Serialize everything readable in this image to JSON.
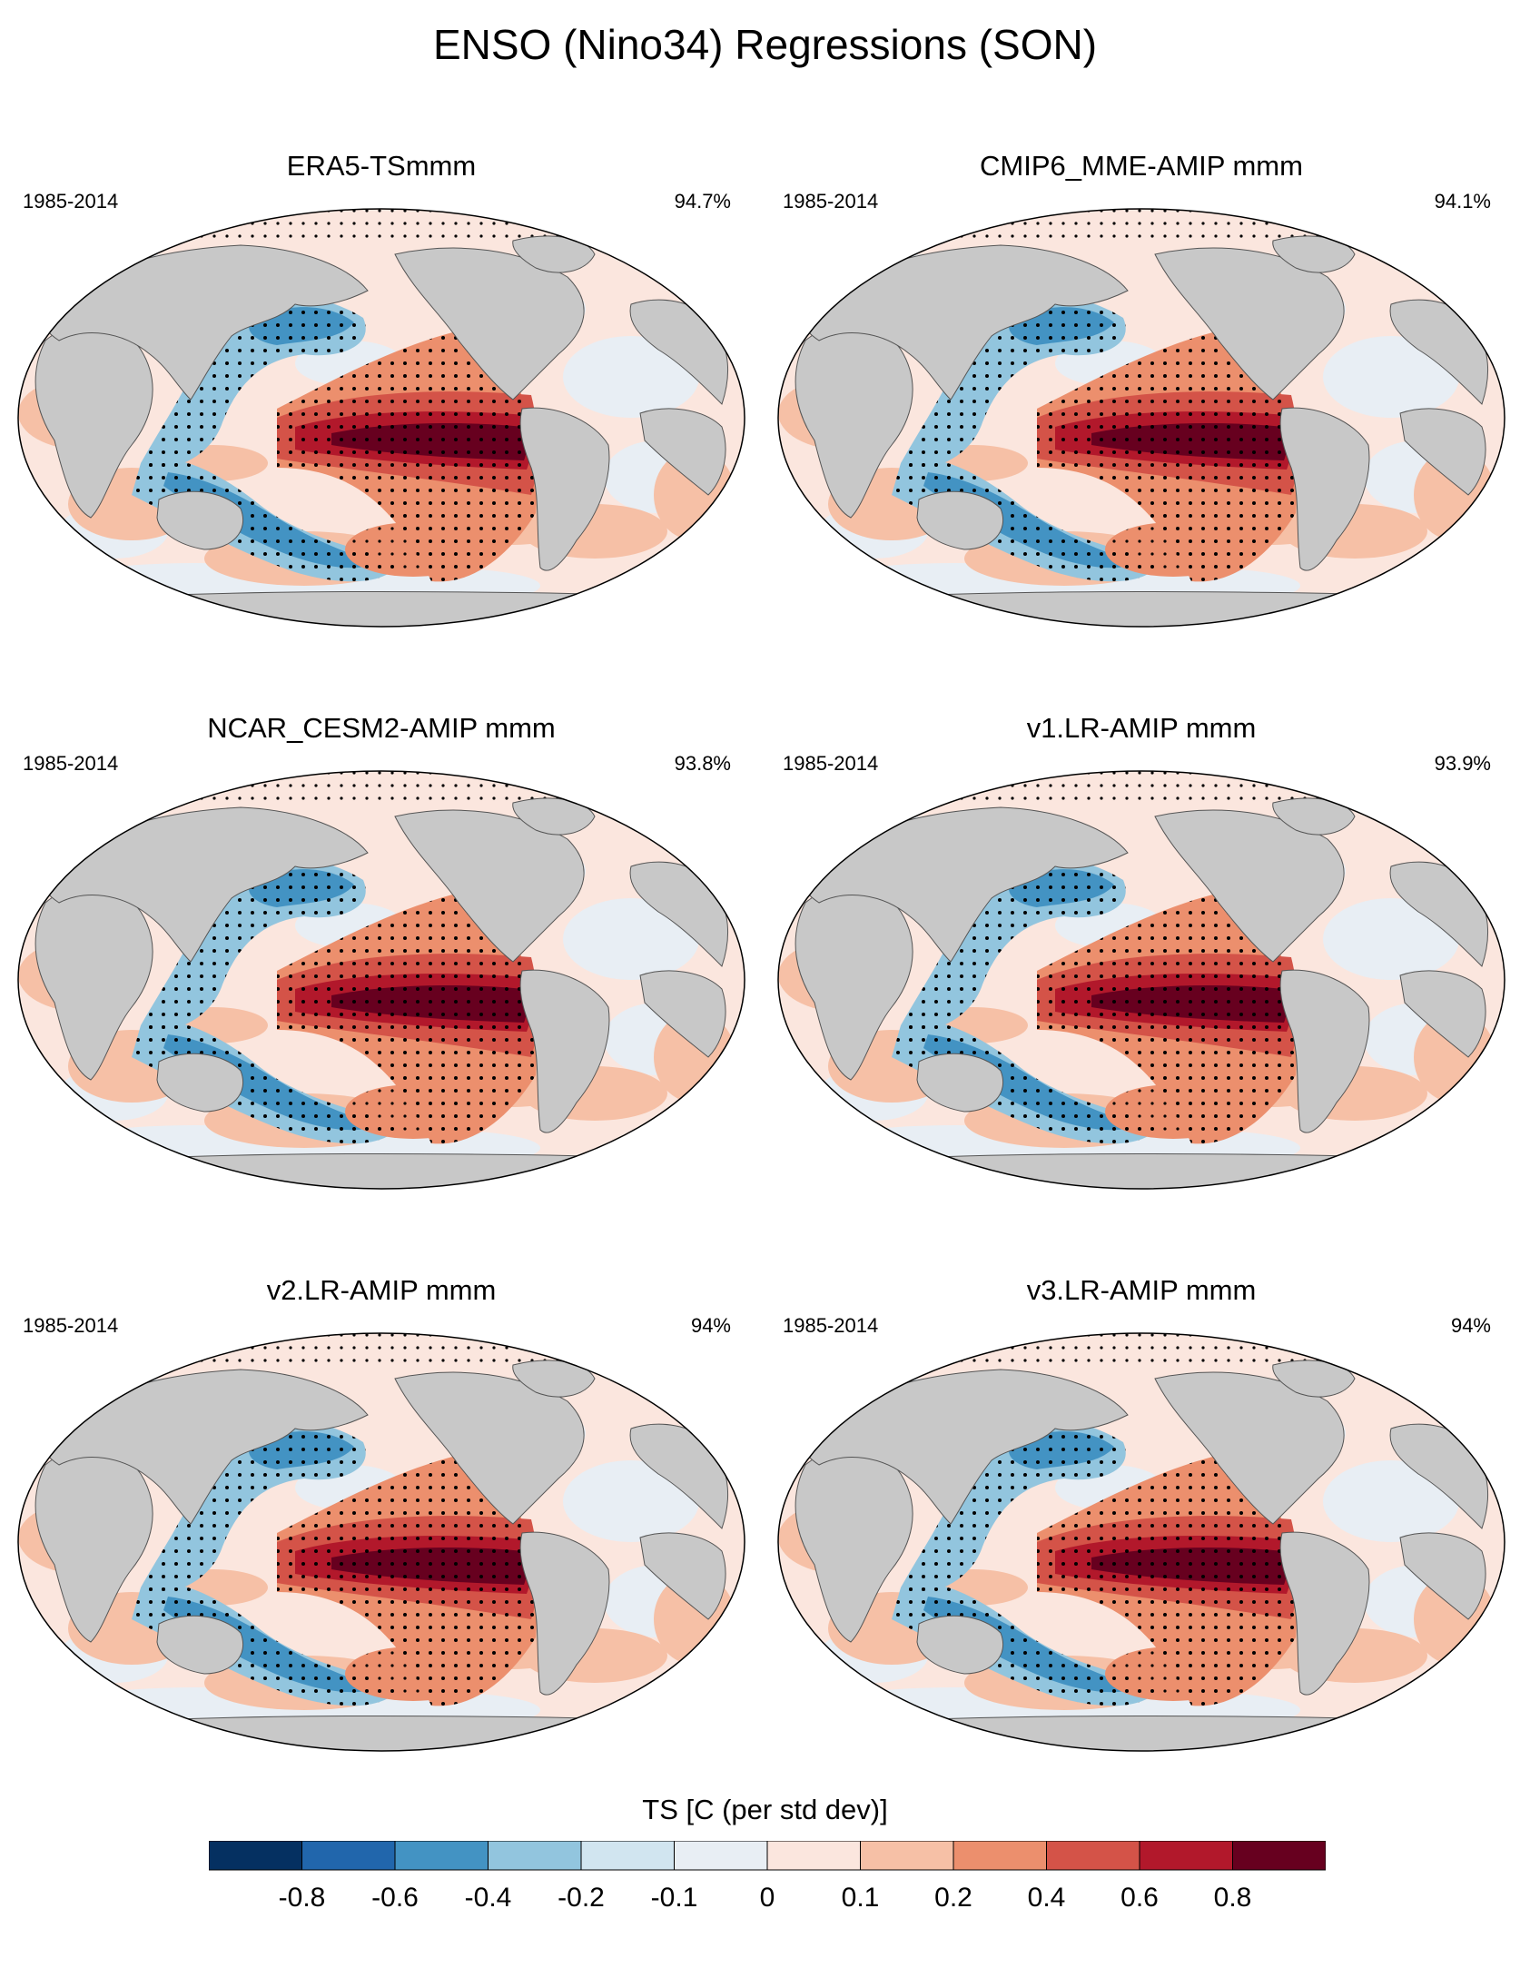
{
  "chart_data": {
    "type": "heatmap",
    "title": "ENSO (Nino34) Regressions (SON)",
    "colorbar": {
      "label": "TS [C (per std dev)]",
      "ticks": [
        "-0.8",
        "-0.6",
        "-0.4",
        "-0.2",
        "-0.1",
        "0",
        "0.1",
        "0.2",
        "0.4",
        "0.6",
        "0.8"
      ],
      "colors": [
        "#053061",
        "#2166ac",
        "#4393c3",
        "#92c5de",
        "#d1e5f0",
        "#e8eef4",
        "#fbe6de",
        "#f6c0a6",
        "#ec8f6d",
        "#d45348",
        "#b2182b",
        "#67001f"
      ]
    },
    "panels": [
      {
        "title": "ERA5-TSmmm",
        "period": "1985-2014",
        "pct": "94.7%"
      },
      {
        "title": "CMIP6_MME-AMIP  mmm",
        "period": "1985-2014",
        "pct": "94.1%"
      },
      {
        "title": "NCAR_CESM2-AMIP  mmm",
        "period": "1985-2014",
        "pct": "93.8%"
      },
      {
        "title": "v1.LR-AMIP  mmm",
        "period": "1985-2014",
        "pct": "93.9%"
      },
      {
        "title": "v2.LR-AMIP  mmm",
        "period": "1985-2014",
        "pct": "94%"
      },
      {
        "title": "v3.LR-AMIP  mmm",
        "period": "1985-2014",
        "pct": "94%"
      }
    ]
  }
}
